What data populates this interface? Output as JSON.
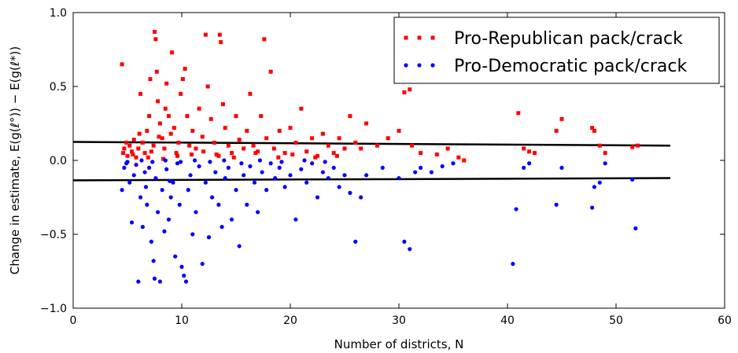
{
  "chart_data": {
    "type": "scatter",
    "xlabel": "Number of districts, N",
    "ylabel": "Change in estimate, E(g(ℓ°)) − E(g(ℓ*))",
    "xlim": [
      0,
      60
    ],
    "ylim": [
      -1.0,
      1.0
    ],
    "xticks": [
      0,
      10,
      20,
      30,
      40,
      50,
      60
    ],
    "yticks": [
      -1.0,
      -0.5,
      0.0,
      0.5,
      1.0
    ],
    "xtick_labels": [
      "0",
      "10",
      "20",
      "30",
      "40",
      "50",
      "60"
    ],
    "ytick_labels": [
      "−1.0",
      "−0.5",
      "0.0",
      "0.5",
      "1.0"
    ],
    "grid": false,
    "legend_position": "top-right",
    "series": [
      {
        "name": "Pro-Republican pack/crack",
        "color": "#ff0000",
        "marker": "square",
        "points": [
          [
            4.5,
            0.65
          ],
          [
            4.6,
            0.05
          ],
          [
            4.7,
            0.08
          ],
          [
            4.9,
            0.12
          ],
          [
            5.0,
            0.03
          ],
          [
            5.2,
            0.1
          ],
          [
            5.4,
            0.06
          ],
          [
            5.6,
            0.14
          ],
          [
            5.8,
            0.02
          ],
          [
            6.0,
            0.08
          ],
          [
            6.2,
            0.45
          ],
          [
            6.4,
            0.12
          ],
          [
            6.6,
            0.05
          ],
          [
            6.8,
            0.2
          ],
          [
            7.0,
            0.3
          ],
          [
            7.1,
            0.55
          ],
          [
            7.2,
            0.06
          ],
          [
            7.4,
            0.1
          ],
          [
            7.5,
            0.87
          ],
          [
            7.6,
            0.82
          ],
          [
            7.7,
            0.6
          ],
          [
            7.8,
            0.4
          ],
          [
            8.0,
            0.25
          ],
          [
            8.2,
            0.15
          ],
          [
            8.4,
            0.08
          ],
          [
            8.5,
            0.35
          ],
          [
            8.6,
            0.52
          ],
          [
            8.8,
            0.3
          ],
          [
            9.0,
            0.18
          ],
          [
            9.1,
            0.73
          ],
          [
            9.3,
            0.22
          ],
          [
            9.5,
            0.05
          ],
          [
            9.7,
            0.12
          ],
          [
            9.9,
            0.45
          ],
          [
            10.1,
            0.55
          ],
          [
            10.3,
            0.62
          ],
          [
            10.5,
            0.3
          ],
          [
            10.7,
            0.1
          ],
          [
            11.0,
            0.2
          ],
          [
            11.3,
            0.08
          ],
          [
            11.6,
            0.35
          ],
          [
            11.9,
            0.16
          ],
          [
            12.2,
            0.85
          ],
          [
            12.4,
            0.5
          ],
          [
            12.7,
            0.28
          ],
          [
            13.0,
            0.12
          ],
          [
            13.2,
            0.04
          ],
          [
            13.5,
            0.85
          ],
          [
            13.6,
            0.8
          ],
          [
            13.8,
            0.38
          ],
          [
            14.0,
            0.22
          ],
          [
            14.3,
            0.1
          ],
          [
            14.6,
            0.05
          ],
          [
            15.0,
            0.3
          ],
          [
            15.3,
            0.14
          ],
          [
            15.7,
            0.08
          ],
          [
            16.0,
            0.2
          ],
          [
            16.3,
            0.45
          ],
          [
            16.6,
            0.1
          ],
          [
            17.0,
            0.06
          ],
          [
            17.3,
            0.3
          ],
          [
            17.6,
            0.82
          ],
          [
            17.8,
            0.15
          ],
          [
            18.2,
            0.6
          ],
          [
            18.5,
            0.08
          ],
          [
            19.0,
            0.2
          ],
          [
            19.5,
            0.05
          ],
          [
            20.0,
            0.22
          ],
          [
            20.5,
            0.12
          ],
          [
            21.0,
            0.35
          ],
          [
            21.5,
            0.06
          ],
          [
            22.0,
            0.15
          ],
          [
            22.5,
            0.03
          ],
          [
            23.0,
            0.18
          ],
          [
            23.5,
            0.1
          ],
          [
            24.0,
            0.05
          ],
          [
            24.5,
            0.15
          ],
          [
            25.0,
            0.08
          ],
          [
            25.5,
            0.3
          ],
          [
            26.0,
            0.12
          ],
          [
            26.5,
            0.08
          ],
          [
            27.0,
            0.25
          ],
          [
            28.0,
            0.1
          ],
          [
            29.0,
            0.15
          ],
          [
            30.0,
            0.2
          ],
          [
            30.5,
            0.46
          ],
          [
            31.0,
            0.48
          ],
          [
            31.2,
            0.1
          ],
          [
            32.0,
            0.05
          ],
          [
            33.5,
            0.04
          ],
          [
            34.5,
            0.08
          ],
          [
            35.5,
            0.02
          ],
          [
            36.0,
            0.0
          ],
          [
            41.0,
            0.32
          ],
          [
            41.5,
            0.08
          ],
          [
            42.0,
            0.06
          ],
          [
            42.5,
            0.05
          ],
          [
            44.5,
            0.2
          ],
          [
            45.0,
            0.28
          ],
          [
            47.8,
            0.22
          ],
          [
            48.0,
            0.2
          ],
          [
            48.5,
            0.1
          ],
          [
            49.0,
            0.05
          ],
          [
            51.5,
            0.09
          ],
          [
            52.0,
            0.1
          ],
          [
            5.5,
            0.04
          ],
          [
            6.9,
            0.02
          ],
          [
            8.3,
            0.01
          ],
          [
            9.6,
            0.03
          ],
          [
            10.9,
            0.04
          ],
          [
            12.0,
            0.06
          ],
          [
            13.4,
            0.03
          ],
          [
            14.8,
            0.02
          ],
          [
            16.8,
            0.05
          ],
          [
            18.9,
            0.02
          ],
          [
            20.2,
            0.04
          ],
          [
            22.3,
            0.02
          ],
          [
            24.3,
            0.03
          ],
          [
            6.1,
            0.18
          ],
          [
            7.9,
            0.16
          ]
        ]
      },
      {
        "name": "Pro-Democratic pack/crack",
        "color": "#0000ff",
        "marker": "circle",
        "points": [
          [
            4.5,
            -0.2
          ],
          [
            4.7,
            -0.05
          ],
          [
            4.9,
            -0.02
          ],
          [
            5.2,
            -0.15
          ],
          [
            5.4,
            -0.42
          ],
          [
            5.6,
            -0.1
          ],
          [
            5.8,
            -0.03
          ],
          [
            6.0,
            -0.82
          ],
          [
            6.2,
            -0.25
          ],
          [
            6.4,
            -0.45
          ],
          [
            6.6,
            -0.08
          ],
          [
            6.8,
            -0.3
          ],
          [
            7.0,
            -0.05
          ],
          [
            7.2,
            -0.55
          ],
          [
            7.4,
            -0.68
          ],
          [
            7.5,
            -0.8
          ],
          [
            7.6,
            -0.12
          ],
          [
            7.8,
            -0.35
          ],
          [
            8.0,
            -0.82
          ],
          [
            8.2,
            -0.2
          ],
          [
            8.4,
            -0.48
          ],
          [
            8.6,
            -0.06
          ],
          [
            8.8,
            -0.4
          ],
          [
            9.0,
            -0.25
          ],
          [
            9.2,
            -0.15
          ],
          [
            9.4,
            -0.65
          ],
          [
            9.6,
            -0.02
          ],
          [
            9.8,
            -0.3
          ],
          [
            10.0,
            -0.72
          ],
          [
            10.2,
            -0.78
          ],
          [
            10.4,
            -0.82
          ],
          [
            10.6,
            -0.2
          ],
          [
            10.8,
            -0.1
          ],
          [
            11.0,
            -0.5
          ],
          [
            11.3,
            -0.35
          ],
          [
            11.6,
            -0.04
          ],
          [
            11.9,
            -0.7
          ],
          [
            12.2,
            -0.15
          ],
          [
            12.5,
            -0.52
          ],
          [
            12.8,
            -0.25
          ],
          [
            13.1,
            -0.08
          ],
          [
            13.4,
            -0.3
          ],
          [
            13.7,
            -0.45
          ],
          [
            14.0,
            -0.12
          ],
          [
            14.3,
            -0.05
          ],
          [
            14.6,
            -0.4
          ],
          [
            15.0,
            -0.2
          ],
          [
            15.3,
            -0.58
          ],
          [
            15.7,
            -0.1
          ],
          [
            16.0,
            -0.3
          ],
          [
            16.3,
            -0.04
          ],
          [
            16.7,
            -0.15
          ],
          [
            17.0,
            -0.35
          ],
          [
            17.4,
            -0.08
          ],
          [
            17.8,
            -0.2
          ],
          [
            18.2,
            -0.02
          ],
          [
            18.6,
            -0.12
          ],
          [
            19.0,
            -0.05
          ],
          [
            19.5,
            -0.18
          ],
          [
            20.0,
            -0.1
          ],
          [
            20.5,
            -0.4
          ],
          [
            21.0,
            -0.06
          ],
          [
            21.5,
            -0.15
          ],
          [
            22.0,
            -0.02
          ],
          [
            22.5,
            -0.25
          ],
          [
            23.0,
            -0.08
          ],
          [
            23.5,
            -0.12
          ],
          [
            24.0,
            -0.05
          ],
          [
            24.5,
            -0.18
          ],
          [
            25.0,
            -0.1
          ],
          [
            25.5,
            -0.22
          ],
          [
            26.0,
            -0.55
          ],
          [
            26.5,
            -0.25
          ],
          [
            27.0,
            -0.1
          ],
          [
            28.5,
            -0.05
          ],
          [
            30.0,
            -0.12
          ],
          [
            30.5,
            -0.55
          ],
          [
            31.0,
            -0.6
          ],
          [
            31.5,
            -0.08
          ],
          [
            32.0,
            -0.05
          ],
          [
            33.0,
            -0.08
          ],
          [
            34.0,
            -0.04
          ],
          [
            35.0,
            -0.02
          ],
          [
            40.5,
            -0.7
          ],
          [
            40.8,
            -0.33
          ],
          [
            41.5,
            -0.05
          ],
          [
            42.0,
            -0.02
          ],
          [
            44.5,
            -0.3
          ],
          [
            45.0,
            -0.05
          ],
          [
            47.8,
            -0.32
          ],
          [
            48.0,
            -0.18
          ],
          [
            48.5,
            -0.15
          ],
          [
            49.0,
            -0.02
          ],
          [
            51.5,
            -0.13
          ],
          [
            51.8,
            -0.46
          ],
          [
            5.0,
            -0.01
          ],
          [
            6.3,
            0.0
          ],
          [
            7.3,
            -0.01
          ],
          [
            8.5,
            0.0
          ],
          [
            9.9,
            -0.01
          ],
          [
            11.2,
            0.0
          ],
          [
            12.6,
            -0.01
          ],
          [
            13.9,
            0.0
          ],
          [
            15.5,
            -0.02
          ],
          [
            17.2,
            0.0
          ],
          [
            19.2,
            -0.01
          ],
          [
            21.3,
            0.0
          ],
          [
            23.2,
            -0.01
          ],
          [
            6.7,
            -0.18
          ],
          [
            8.9,
            -0.14
          ]
        ]
      }
    ],
    "reference_lines": [
      {
        "x": [
          0,
          55
        ],
        "y": [
          0.125,
          0.1
        ],
        "color": "#000000"
      },
      {
        "x": [
          0,
          55
        ],
        "y": [
          -0.135,
          -0.12
        ],
        "color": "#000000"
      }
    ]
  }
}
